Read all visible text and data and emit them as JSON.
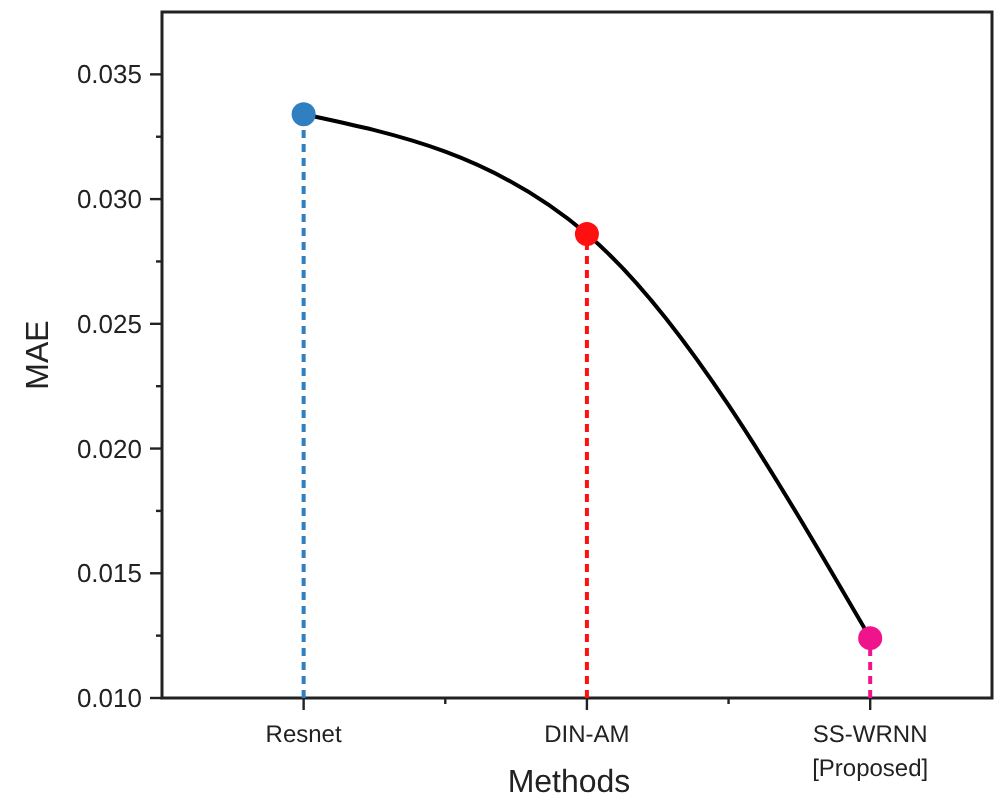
{
  "chart_data": {
    "type": "line",
    "xlabel": "Methods",
    "ylabel": "MAE",
    "categories": [
      "Resnet",
      "DIN-AM",
      "SS-WRNN\n[Proposed]"
    ],
    "series": [
      {
        "color": "#000000",
        "values": [
          0.0334,
          0.0286,
          0.0124
        ],
        "marker": "none",
        "line_style": "solid"
      },
      {
        "type": "lollipop",
        "colors": [
          "#2f7fc1",
          "#ff1010",
          "#f0148c"
        ],
        "values": [
          0.0334,
          0.0286,
          0.0124
        ],
        "marker": "circle",
        "line_style": "dashed"
      }
    ],
    "ylim": [
      0.01,
      0.0375
    ],
    "yticks": [
      {
        "value": 0.01,
        "label": "0.010"
      },
      {
        "value": 0.0125,
        "label": null
      },
      {
        "value": 0.015,
        "label": "0.015"
      },
      {
        "value": 0.0175,
        "label": null
      },
      {
        "value": 0.02,
        "label": "0.020"
      },
      {
        "value": 0.0225,
        "label": null
      },
      {
        "value": 0.025,
        "label": "0.025"
      },
      {
        "value": 0.0275,
        "label": null
      },
      {
        "value": 0.03,
        "label": "0.030"
      },
      {
        "value": 0.0325,
        "label": null
      },
      {
        "value": 0.035,
        "label": "0.035"
      }
    ],
    "grid": false
  }
}
